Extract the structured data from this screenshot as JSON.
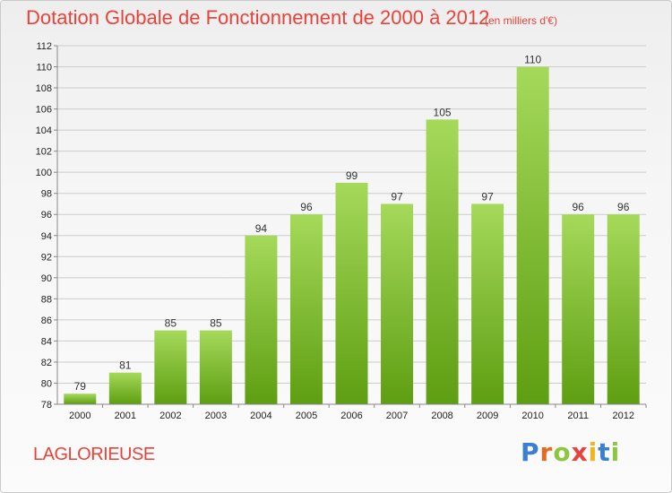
{
  "header": {
    "title": "Dotation Globale de Fonctionnement de 2000 à 2012",
    "unit": "(en milliers d'€)"
  },
  "footer": {
    "commune": "LAGLORIEUSE",
    "logo": [
      "P",
      "r",
      "o",
      "x",
      "i",
      "t",
      "i"
    ],
    "logo_colors": [
      "#3a7fd1",
      "#e86a1f",
      "#8dc63f",
      "#e8433b",
      "#f3b51b",
      "#3a7fd1",
      "#8dc63f"
    ]
  },
  "colors": {
    "bar_top": "#a5d95a",
    "bar_bottom": "#5e9e12",
    "grid": "#cccccc",
    "axis": "#888888"
  },
  "chart_data": {
    "type": "bar",
    "categories": [
      "2000",
      "2001",
      "2002",
      "2003",
      "2004",
      "2005",
      "2006",
      "2007",
      "2008",
      "2009",
      "2010",
      "2011",
      "2012"
    ],
    "values": [
      79,
      81,
      85,
      85,
      94,
      96,
      99,
      97,
      105,
      97,
      110,
      96,
      96
    ],
    "yticks": [
      78,
      80,
      82,
      84,
      86,
      88,
      90,
      92,
      94,
      96,
      98,
      100,
      102,
      104,
      106,
      108,
      110,
      112
    ],
    "ylim": [
      78,
      112
    ],
    "grid": true,
    "xlabel": "",
    "ylabel": ""
  }
}
